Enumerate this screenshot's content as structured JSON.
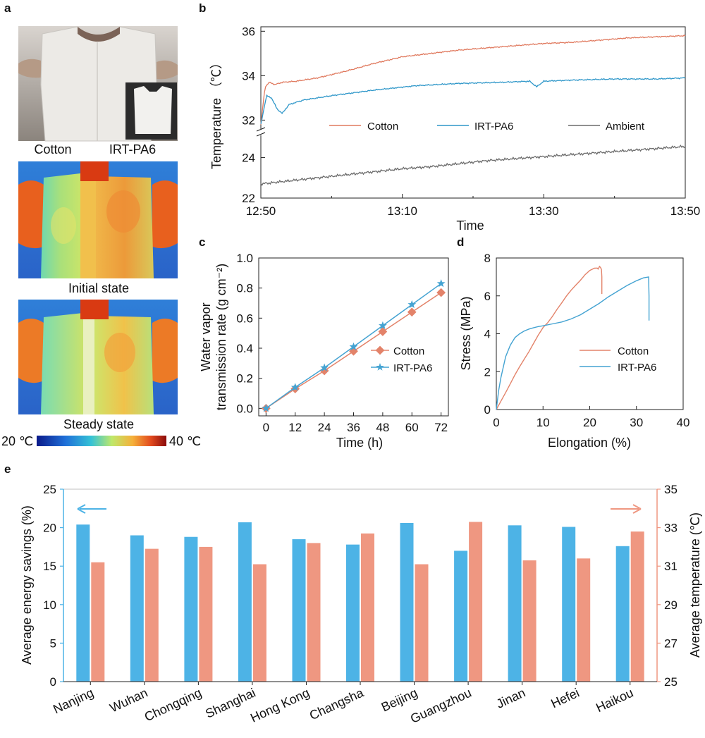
{
  "colors": {
    "cotton": "#e07a5f",
    "irt": "#2f97c9",
    "ambient": "#6b6b6b",
    "bar_blue": "#4db3e6",
    "bar_red": "#ef9781",
    "cotton_c": "#e3836a",
    "irt_c": "#44a3d2"
  },
  "panel_a": {
    "label": "a",
    "photo_labels": [
      "Cotton",
      "IRT-PA6"
    ],
    "initial_caption": "Initial state",
    "steady_caption": "Steady state",
    "colorbar_min": "20 ℃",
    "colorbar_max": "40 ℃"
  },
  "panel_b": {
    "label": "b"
  },
  "panel_c": {
    "label": "c"
  },
  "panel_d": {
    "label": "d"
  },
  "panel_e": {
    "label": "e"
  },
  "chart_data": [
    {
      "id": "b",
      "type": "line",
      "xlabel": "Time",
      "ylabel": "Temperature （℃）",
      "x_ticks": [
        "12:50",
        "13:10",
        "13:30",
        "13:50"
      ],
      "x_range_min": [
        0,
        60
      ],
      "y_ticks_upper": [
        32,
        34,
        36
      ],
      "y_ticks_lower": [
        22,
        24
      ],
      "ylim_upper": [
        31.6,
        36.2
      ],
      "ylim_lower": [
        22,
        25.1
      ],
      "series": [
        {
          "name": "Cotton",
          "x": [
            0,
            0.6,
            1.2,
            2,
            3,
            5,
            8,
            12,
            16,
            20,
            24,
            28,
            32,
            36,
            40,
            44,
            48,
            52,
            56,
            60
          ],
          "y": [
            31.8,
            33.5,
            33.7,
            33.6,
            33.7,
            33.75,
            33.9,
            34.2,
            34.55,
            34.85,
            35.0,
            35.15,
            35.25,
            35.35,
            35.45,
            35.5,
            35.6,
            35.7,
            35.75,
            35.8
          ]
        },
        {
          "name": "IRT-PA6",
          "x": [
            0,
            0.8,
            1.5,
            2.3,
            3,
            4,
            6,
            10,
            16,
            22,
            28,
            34,
            38,
            39,
            40,
            44,
            50,
            56,
            60
          ],
          "y": [
            31.8,
            33.1,
            33.0,
            32.5,
            32.3,
            32.7,
            32.9,
            33.1,
            33.35,
            33.55,
            33.65,
            33.7,
            33.75,
            33.5,
            33.75,
            33.8,
            33.85,
            33.85,
            33.9
          ]
        },
        {
          "name": "Ambient",
          "x": [
            0,
            4,
            8,
            12,
            16,
            20,
            24,
            28,
            32,
            36,
            40,
            44,
            48,
            52,
            56,
            60
          ],
          "y": [
            22.7,
            22.85,
            23.0,
            23.15,
            23.3,
            23.45,
            23.55,
            23.7,
            23.85,
            23.95,
            24.05,
            24.15,
            24.25,
            24.35,
            24.45,
            24.55
          ]
        }
      ]
    },
    {
      "id": "c",
      "type": "line",
      "xlabel": "Time (h)",
      "ylabel_line1": "Water vapor",
      "ylabel_line2": "transmission rate (g cm⁻²)",
      "x": [
        0,
        12,
        24,
        36,
        48,
        60,
        72
      ],
      "x_ticks": [
        0,
        12,
        24,
        36,
        48,
        60,
        72
      ],
      "y_ticks": [
        "0.0",
        "0.2",
        "0.4",
        "0.6",
        "0.8",
        "1.0"
      ],
      "xlim": [
        -3,
        75
      ],
      "ylim": [
        -0.05,
        1.0
      ],
      "series": [
        {
          "name": "Cotton",
          "marker": "diamond",
          "values": [
            0.0,
            0.13,
            0.25,
            0.38,
            0.51,
            0.64,
            0.77
          ]
        },
        {
          "name": "IRT-PA6",
          "marker": "star",
          "values": [
            0.0,
            0.14,
            0.27,
            0.41,
            0.55,
            0.69,
            0.83
          ]
        }
      ]
    },
    {
      "id": "d",
      "type": "line",
      "xlabel": "Elongation (%)",
      "ylabel": "Stress (MPa)",
      "x_ticks": [
        0,
        10,
        20,
        30,
        40
      ],
      "y_ticks": [
        0,
        2,
        4,
        6,
        8
      ],
      "xlim": [
        0,
        40
      ],
      "ylim": [
        0,
        8
      ],
      "series": [
        {
          "name": "Cotton",
          "x": [
            0,
            1,
            2,
            3,
            4,
            5,
            6,
            7,
            8,
            9,
            10,
            11,
            12,
            13,
            14,
            15,
            16,
            17,
            18,
            19,
            20,
            21,
            21.6,
            21.8,
            22.1,
            22.3,
            22.5,
            22.6,
            22.6
          ],
          "y": [
            0,
            0.45,
            0.9,
            1.35,
            1.8,
            2.25,
            2.7,
            3.1,
            3.5,
            3.9,
            4.3,
            4.6,
            4.95,
            5.3,
            5.6,
            5.95,
            6.3,
            6.6,
            6.85,
            7.1,
            7.3,
            7.45,
            7.5,
            7.45,
            7.55,
            7.5,
            7.4,
            7.0,
            6.1
          ]
        },
        {
          "name": "IRT-PA6",
          "x": [
            0,
            0.5,
            1,
            2,
            3,
            4,
            5,
            6,
            7,
            8,
            9,
            10,
            12,
            14,
            16,
            18,
            20,
            22,
            24,
            26,
            28,
            30,
            31.5,
            32.6,
            32.7,
            32.7
          ],
          "y": [
            0,
            1.0,
            1.7,
            2.8,
            3.4,
            3.8,
            4.0,
            4.15,
            4.25,
            4.32,
            4.38,
            4.42,
            4.52,
            4.62,
            4.78,
            5.0,
            5.3,
            5.6,
            5.95,
            6.25,
            6.55,
            6.8,
            6.95,
            7.0,
            6.0,
            4.7
          ]
        }
      ]
    },
    {
      "id": "e",
      "type": "bar",
      "categories": [
        "Nanjing",
        "Wuhan",
        "Chongqing",
        "Shanghai",
        "Hong Kong",
        "Changsha",
        "Beijing",
        "Guangzhou",
        "Jinan",
        "Hefei",
        "Haikou"
      ],
      "ylabel_left": "Average energy savings (%)",
      "ylabel_right": "Average temperature (℃)",
      "left_ticks": [
        0,
        5,
        10,
        15,
        20,
        25
      ],
      "right_ticks": [
        25,
        27,
        29,
        31,
        33,
        35
      ],
      "ylim_left": [
        0,
        25
      ],
      "ylim_right": [
        25,
        35
      ],
      "series": [
        {
          "name": "Average energy savings",
          "axis": "left",
          "values": [
            20.4,
            19.0,
            18.8,
            20.7,
            18.5,
            17.8,
            20.6,
            17.0,
            20.3,
            20.1,
            17.6
          ]
        },
        {
          "name": "Average temperature",
          "axis": "right",
          "values": [
            31.2,
            31.9,
            32.0,
            31.1,
            32.2,
            32.7,
            31.1,
            33.3,
            31.3,
            31.4,
            32.8
          ]
        }
      ]
    }
  ]
}
